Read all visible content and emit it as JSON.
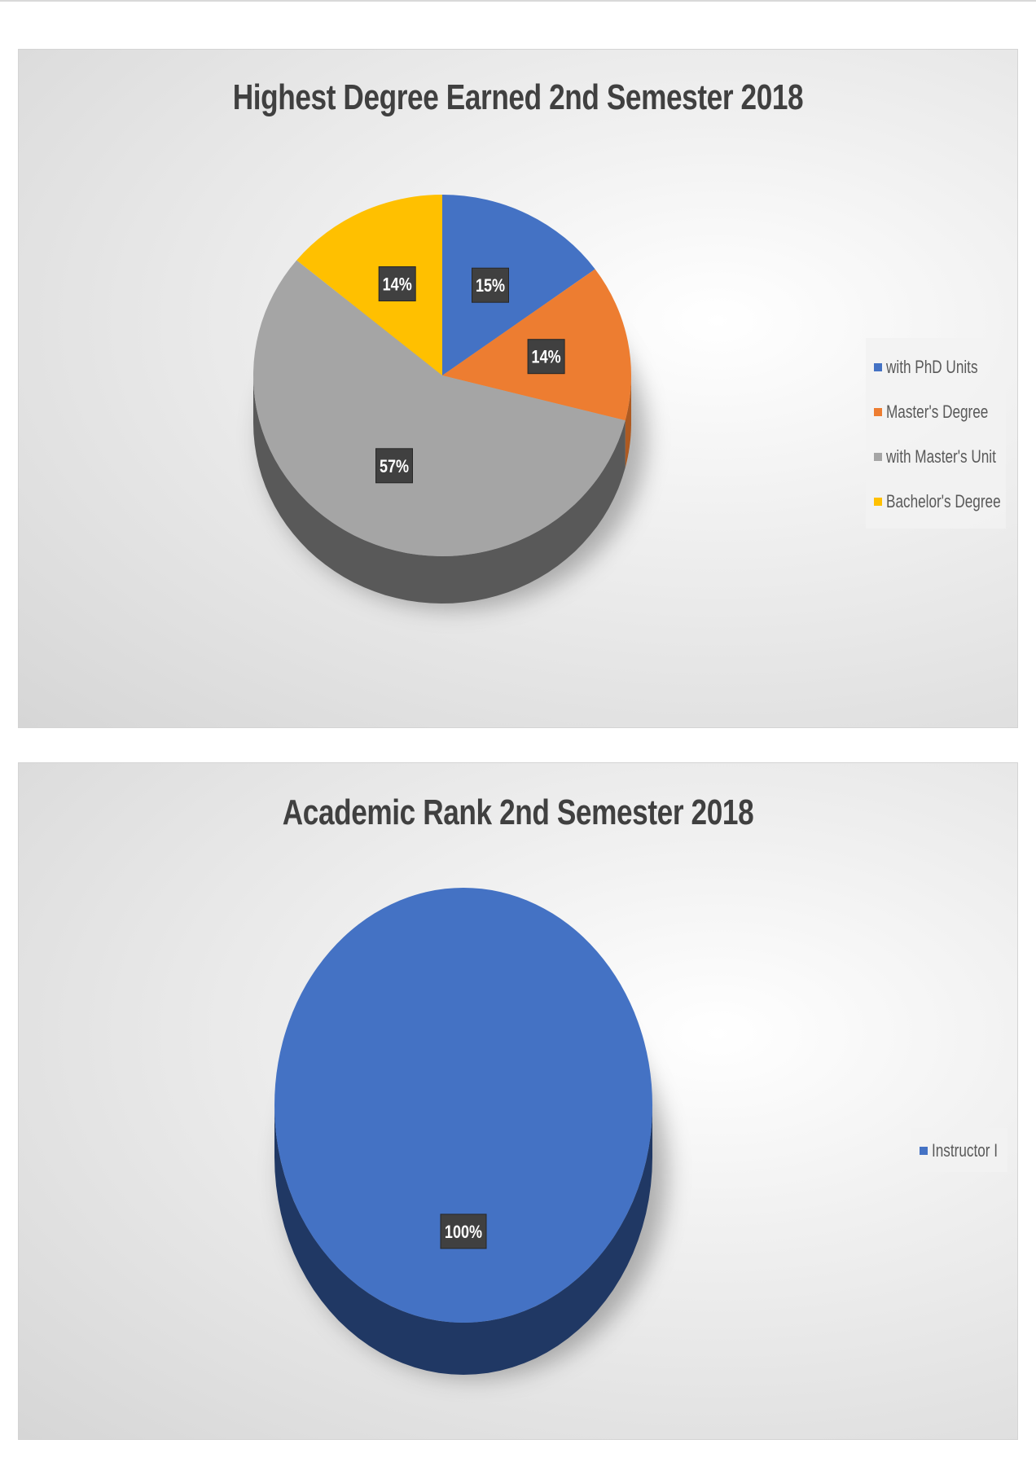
{
  "chart_data": [
    {
      "type": "pie",
      "title": "Highest Degree Earned 2nd Semester 2018",
      "categories": [
        "with PhD Units",
        "Master's Degree",
        "with Master's Unit",
        "Bachelor's Degree"
      ],
      "values": [
        15,
        14,
        57,
        14
      ],
      "data_labels": [
        "15%",
        "14%",
        "57%",
        "14%"
      ],
      "colors": [
        "#4472c4",
        "#ed7d31",
        "#a5a5a5",
        "#ffc000"
      ],
      "side_colors": [
        "#2f528f",
        "#ae5a21",
        "#595959",
        "#bf9000"
      ],
      "legend_position": "right",
      "style": "3d"
    },
    {
      "type": "pie",
      "title": "Academic Rank 2nd Semester 2018",
      "categories": [
        "Instructor I"
      ],
      "values": [
        100
      ],
      "data_labels": [
        "100%"
      ],
      "colors": [
        "#4472c4"
      ],
      "side_colors": [
        "#203864"
      ],
      "legend_position": "right",
      "style": "3d"
    }
  ]
}
